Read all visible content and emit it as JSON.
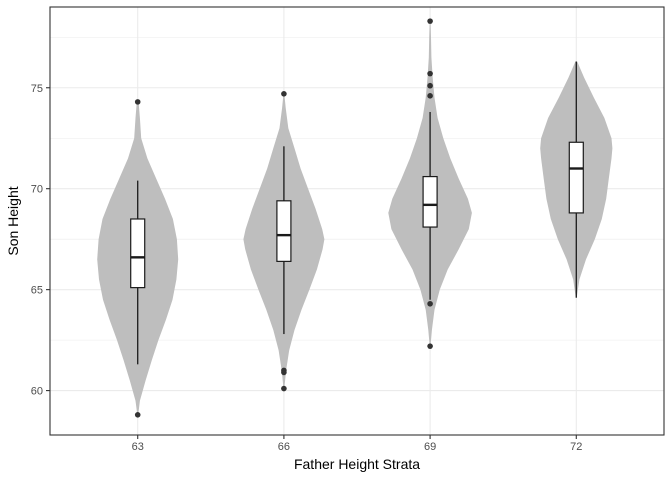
{
  "chart_data": {
    "type": "violin",
    "xlabel": "Father Height Strata",
    "ylabel": "Son Height",
    "categories": [
      "63",
      "66",
      "69",
      "72"
    ],
    "ylim": [
      57.8,
      79.0
    ],
    "y_ticks": [
      60,
      65,
      70,
      75
    ],
    "grid": true,
    "theme": "bw",
    "colors": {
      "violin_fill": "#bebebe",
      "box_fill": "#ffffff",
      "box_line": "#1a1a1a",
      "outlier": "#333333",
      "grid": "#ebebeb",
      "panel_border": "#333333"
    },
    "groups": [
      {
        "category": "63",
        "box": {
          "whisker_low": 61.3,
          "q1": 65.1,
          "median": 66.6,
          "q3": 68.5,
          "whisker_high": 70.4
        },
        "outliers": [
          74.3,
          58.8
        ],
        "violin": {
          "min": 58.8,
          "max": 74.3,
          "profile": [
            [
              58.8,
              0.01
            ],
            [
              59.5,
              0.05
            ],
            [
              60.5,
              0.18
            ],
            [
              61.5,
              0.32
            ],
            [
              62.5,
              0.47
            ],
            [
              63.5,
              0.64
            ],
            [
              64.5,
              0.79
            ],
            [
              65.5,
              0.88
            ],
            [
              66.5,
              0.92
            ],
            [
              67.5,
              0.89
            ],
            [
              68.5,
              0.8
            ],
            [
              69.5,
              0.62
            ],
            [
              70.5,
              0.42
            ],
            [
              71.5,
              0.22
            ],
            [
              72.5,
              0.08
            ],
            [
              73.5,
              0.05
            ],
            [
              74.3,
              0.02
            ]
          ]
        }
      },
      {
        "category": "66",
        "box": {
          "whisker_low": 62.8,
          "q1": 66.4,
          "median": 67.7,
          "q3": 69.4,
          "whisker_high": 72.1
        },
        "outliers": [
          74.7,
          61.0,
          60.9,
          60.1
        ],
        "violin": {
          "min": 60.1,
          "max": 74.7,
          "profile": [
            [
              60.1,
              0.01
            ],
            [
              61.0,
              0.05
            ],
            [
              62.0,
              0.12
            ],
            [
              63.0,
              0.24
            ],
            [
              64.0,
              0.4
            ],
            [
              65.0,
              0.58
            ],
            [
              66.0,
              0.75
            ],
            [
              67.0,
              0.88
            ],
            [
              67.5,
              0.92
            ],
            [
              68.0,
              0.87
            ],
            [
              69.0,
              0.72
            ],
            [
              70.0,
              0.55
            ],
            [
              71.0,
              0.38
            ],
            [
              72.0,
              0.24
            ],
            [
              73.0,
              0.1
            ],
            [
              74.0,
              0.04
            ],
            [
              74.7,
              0.01
            ]
          ]
        }
      },
      {
        "category": "69",
        "box": {
          "whisker_low": 64.5,
          "q1": 68.1,
          "median": 69.2,
          "q3": 70.6,
          "whisker_high": 73.8
        },
        "outliers": [
          78.3,
          75.7,
          75.1,
          74.6,
          64.3,
          62.2
        ],
        "violin": {
          "min": 62.2,
          "max": 78.3,
          "profile": [
            [
              62.2,
              0.01
            ],
            [
              63.0,
              0.04
            ],
            [
              64.0,
              0.1
            ],
            [
              65.0,
              0.22
            ],
            [
              66.0,
              0.4
            ],
            [
              67.0,
              0.65
            ],
            [
              68.0,
              0.88
            ],
            [
              68.8,
              0.95
            ],
            [
              69.5,
              0.86
            ],
            [
              70.5,
              0.65
            ],
            [
              71.5,
              0.46
            ],
            [
              72.5,
              0.3
            ],
            [
              73.5,
              0.17
            ],
            [
              74.5,
              0.1
            ],
            [
              75.5,
              0.06
            ],
            [
              76.5,
              0.03
            ],
            [
              77.5,
              0.02
            ],
            [
              78.3,
              0.01
            ]
          ]
        }
      },
      {
        "category": "72",
        "box": {
          "whisker_low": 64.6,
          "q1": 68.8,
          "median": 71.0,
          "q3": 72.3,
          "whisker_high": 76.3
        },
        "outliers": [],
        "violin": {
          "min": 64.6,
          "max": 76.3,
          "profile": [
            [
              64.6,
              0.01
            ],
            [
              65.5,
              0.07
            ],
            [
              66.5,
              0.22
            ],
            [
              67.5,
              0.42
            ],
            [
              68.5,
              0.58
            ],
            [
              69.5,
              0.68
            ],
            [
              70.5,
              0.74
            ],
            [
              71.5,
              0.8
            ],
            [
              72.0,
              0.82
            ],
            [
              72.5,
              0.8
            ],
            [
              73.5,
              0.64
            ],
            [
              74.5,
              0.4
            ],
            [
              75.5,
              0.18
            ],
            [
              76.3,
              0.02
            ]
          ]
        }
      }
    ]
  }
}
